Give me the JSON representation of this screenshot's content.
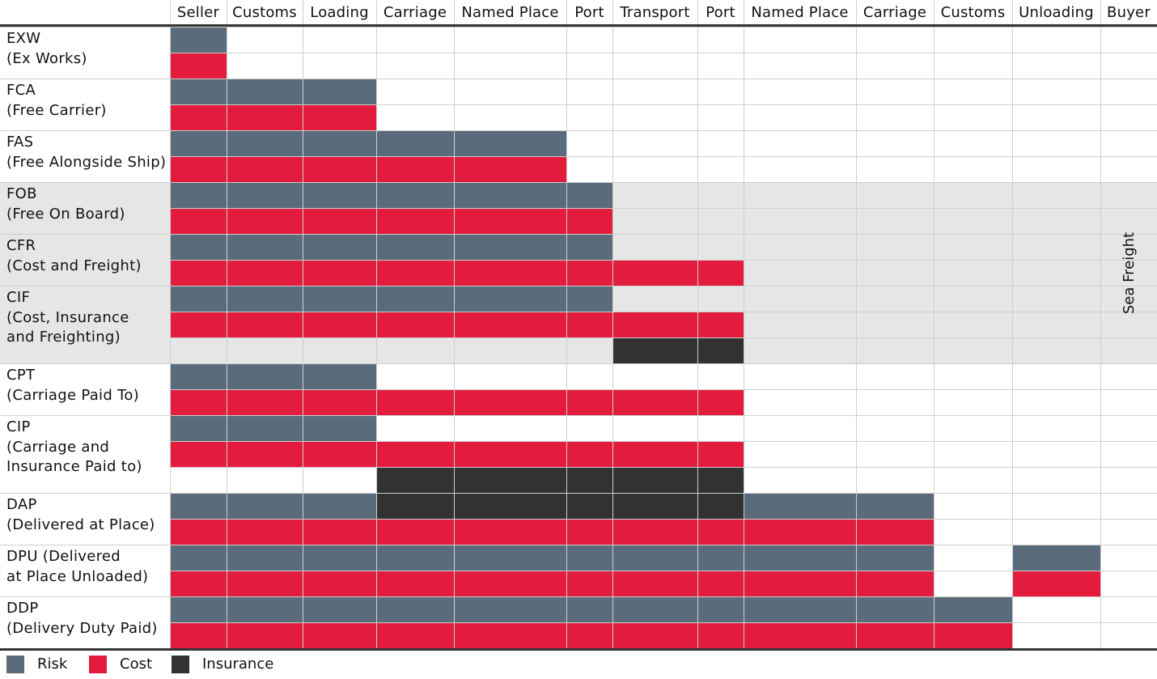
{
  "colors": {
    "risk": "#5a6b7b",
    "cost": "#e31b3c",
    "insurance": "#323232",
    "shade": "#e6e6e6",
    "grid": "#cfcfcf"
  },
  "columns": [
    "Seller",
    "Customs",
    "Loading",
    "Carriage",
    "Named Place",
    "Port",
    "Transport",
    "Port",
    "Named Place",
    "Carriage",
    "Customs",
    "Unloading",
    "Buyer"
  ],
  "sea_freight_label": "Sea Freight",
  "legend": [
    {
      "key": "risk",
      "label": "Risk"
    },
    {
      "key": "cost",
      "label": "Cost"
    },
    {
      "key": "insurance",
      "label": "Insurance"
    }
  ],
  "chart_data": {
    "type": "table",
    "terms": [
      {
        "code": "EXW",
        "lines": [
          "EXW",
          "(Ex Works)"
        ],
        "sea_freight": false,
        "risk": [
          "Seller"
        ],
        "cost": [
          "Seller"
        ],
        "insurance": []
      },
      {
        "code": "FCA",
        "lines": [
          "FCA",
          "(Free Carrier)"
        ],
        "sea_freight": false,
        "risk": [
          "Seller",
          "Customs",
          "Loading"
        ],
        "cost": [
          "Seller",
          "Customs",
          "Loading"
        ],
        "insurance": []
      },
      {
        "code": "FAS",
        "lines": [
          "FAS",
          "(Free Alongside Ship)"
        ],
        "sea_freight": false,
        "risk": [
          "Seller",
          "Customs",
          "Loading",
          "Carriage",
          "Named Place"
        ],
        "cost": [
          "Seller",
          "Customs",
          "Loading",
          "Carriage",
          "Named Place"
        ],
        "insurance": []
      },
      {
        "code": "FOB",
        "lines": [
          "FOB",
          "(Free On Board)"
        ],
        "sea_freight": true,
        "risk": [
          "Seller",
          "Customs",
          "Loading",
          "Carriage",
          "Named Place",
          "Port"
        ],
        "cost": [
          "Seller",
          "Customs",
          "Loading",
          "Carriage",
          "Named Place",
          "Port"
        ],
        "insurance": []
      },
      {
        "code": "CFR",
        "lines": [
          "CFR",
          "(Cost and Freight)"
        ],
        "sea_freight": true,
        "risk": [
          "Seller",
          "Customs",
          "Loading",
          "Carriage",
          "Named Place",
          "Port"
        ],
        "cost": [
          "Seller",
          "Customs",
          "Loading",
          "Carriage",
          "Named Place",
          "Port",
          "Transport",
          "Port"
        ],
        "insurance": []
      },
      {
        "code": "CIF",
        "lines": [
          "CIF",
          "(Cost, Insurance",
          "and Freighting)"
        ],
        "sea_freight": true,
        "risk": [
          "Seller",
          "Customs",
          "Loading",
          "Carriage",
          "Named Place",
          "Port"
        ],
        "cost": [
          "Seller",
          "Customs",
          "Loading",
          "Carriage",
          "Named Place",
          "Port",
          "Transport",
          "Port"
        ],
        "insurance": [
          "Transport",
          "Port"
        ]
      },
      {
        "code": "CPT",
        "lines": [
          "CPT",
          "(Carriage Paid To)"
        ],
        "sea_freight": false,
        "risk": [
          "Seller",
          "Customs",
          "Loading"
        ],
        "cost": [
          "Seller",
          "Customs",
          "Loading",
          "Carriage",
          "Named Place",
          "Port",
          "Transport",
          "Port"
        ],
        "insurance": []
      },
      {
        "code": "CIP",
        "lines": [
          "CIP",
          "(Carriage and",
          "Insurance Paid to)"
        ],
        "sea_freight": false,
        "risk": [
          "Seller",
          "Customs",
          "Loading"
        ],
        "cost": [
          "Seller",
          "Customs",
          "Loading",
          "Carriage",
          "Named Place",
          "Port",
          "Transport",
          "Port"
        ],
        "insurance": [
          "Carriage",
          "Named Place",
          "Port",
          "Transport",
          "Port"
        ]
      },
      {
        "code": "DAP",
        "lines": [
          "DAP",
          "(Delivered at Place)"
        ],
        "sea_freight": false,
        "risk": [
          "Seller",
          "Customs",
          "Loading",
          "Carriage*",
          "Named Place*",
          "Port*",
          "Transport*",
          "Port*",
          "Named Place",
          "Carriage"
        ],
        "cost": [
          "Seller",
          "Customs",
          "Loading",
          "Carriage",
          "Named Place",
          "Port",
          "Transport",
          "Port",
          "Named Place",
          "Carriage"
        ],
        "insurance": [
          "Carriage",
          "Named Place",
          "Port",
          "Transport",
          "Port"
        ]
      },
      {
        "code": "DPU",
        "lines": [
          "DPU (Delivered",
          "at Place Unloaded)"
        ],
        "sea_freight": false,
        "risk": [
          "Seller",
          "Customs",
          "Loading",
          "Carriage",
          "Named Place",
          "Port",
          "Transport",
          "Port",
          "Named Place",
          "Carriage",
          "Unloading"
        ],
        "cost": [
          "Seller",
          "Customs",
          "Loading",
          "Carriage",
          "Named Place",
          "Port",
          "Transport",
          "Port",
          "Named Place",
          "Carriage",
          "Unloading"
        ],
        "insurance": []
      },
      {
        "code": "DDP",
        "lines": [
          "DDP",
          "(Delivery Duty Paid)"
        ],
        "sea_freight": false,
        "risk": [
          "Seller",
          "Customs",
          "Loading",
          "Carriage",
          "Named Place",
          "Port",
          "Transport",
          "Port",
          "Named Place",
          "Carriage",
          "Customs"
        ],
        "cost": [
          "Seller",
          "Customs",
          "Loading",
          "Carriage",
          "Named Place",
          "Port",
          "Transport",
          "Port",
          "Named Place",
          "Carriage",
          "Customs"
        ],
        "insurance": []
      }
    ],
    "cells": [
      {
        "code": "EXW",
        "rows": [
          [
            "R",
            0,
            0
          ],
          [
            "C",
            0,
            0
          ]
        ]
      },
      {
        "code": "FCA",
        "rows": [
          [
            "R",
            0,
            2
          ],
          [
            "C",
            0,
            2
          ]
        ]
      },
      {
        "code": "FAS",
        "rows": [
          [
            "R",
            0,
            4
          ],
          [
            "C",
            0,
            4
          ]
        ]
      },
      {
        "code": "FOB",
        "rows": [
          [
            "R",
            0,
            5
          ],
          [
            "C",
            0,
            5
          ]
        ]
      },
      {
        "code": "CFR",
        "rows": [
          [
            "R",
            0,
            5
          ],
          [
            "C",
            0,
            7
          ]
        ]
      },
      {
        "code": "CIF",
        "rows": [
          [
            "R",
            0,
            5
          ],
          [
            "C",
            0,
            7
          ],
          [
            "I",
            6,
            7
          ]
        ]
      },
      {
        "code": "CPT",
        "rows": [
          [
            "R",
            0,
            2
          ],
          [
            "C",
            0,
            7
          ]
        ]
      },
      {
        "code": "CIP",
        "rows": [
          [
            "R",
            0,
            2
          ],
          [
            "C",
            0,
            7
          ],
          [
            "I",
            3,
            7
          ]
        ]
      },
      {
        "code": "DAP",
        "rows": [
          [
            "R",
            0,
            2,
            "I",
            3,
            7,
            "R",
            8,
            9
          ],
          [
            "C",
            0,
            9
          ]
        ]
      },
      {
        "code": "DPU",
        "rows": [
          [
            "R",
            0,
            9,
            "R",
            11,
            11
          ],
          [
            "C",
            0,
            9,
            "C",
            11,
            11
          ]
        ]
      },
      {
        "code": "DDP",
        "rows": [
          [
            "R",
            0,
            10
          ],
          [
            "C",
            0,
            10
          ]
        ]
      }
    ]
  }
}
